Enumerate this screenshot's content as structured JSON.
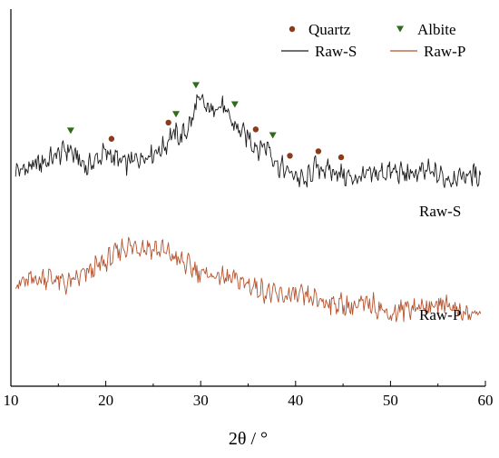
{
  "chart_data": {
    "type": "line",
    "xlabel": "2θ / °",
    "ylabel": "",
    "xlim": [
      10,
      60
    ],
    "x_ticks": [
      "10",
      "20",
      "30",
      "40",
      "50",
      "60"
    ],
    "y_ticks": false,
    "grid": false,
    "legend_position": "top-right",
    "legend": [
      {
        "label": "Quartz",
        "marker": "circle",
        "color": "#8B3A1A"
      },
      {
        "label": "Albite",
        "marker": "triangle-down",
        "color": "#2E6B1A"
      },
      {
        "label": "Raw-S",
        "marker": "line",
        "color": "#1a1a1a"
      },
      {
        "label": "Raw-P",
        "marker": "line",
        "color": "#B5532E"
      }
    ],
    "series": [
      {
        "name": "Raw-S",
        "color": "#1a1a1a",
        "x": [
          10.5,
          12,
          14,
          16,
          18,
          20,
          22,
          24,
          26,
          27,
          28,
          29,
          29.7,
          31,
          32,
          33,
          34,
          35,
          36,
          37,
          38,
          39,
          40,
          41,
          42,
          44,
          46,
          48,
          50,
          52,
          54,
          56,
          58,
          59.5
        ],
        "y": [
          0.57,
          0.58,
          0.6,
          0.63,
          0.58,
          0.62,
          0.59,
          0.61,
          0.63,
          0.67,
          0.66,
          0.7,
          0.76,
          0.73,
          0.75,
          0.71,
          0.68,
          0.66,
          0.63,
          0.64,
          0.59,
          0.57,
          0.56,
          0.54,
          0.58,
          0.57,
          0.55,
          0.56,
          0.57,
          0.56,
          0.57,
          0.55,
          0.56,
          0.56
        ]
      },
      {
        "name": "Raw-P",
        "color": "#B5532E",
        "x": [
          10.5,
          12,
          14,
          16,
          18,
          20,
          22,
          24,
          26,
          28,
          30,
          32,
          34,
          36,
          38,
          40,
          42,
          44,
          46,
          48,
          50,
          52,
          54,
          56,
          58,
          59.5
        ],
        "y": [
          0.27,
          0.28,
          0.29,
          0.27,
          0.3,
          0.33,
          0.37,
          0.37,
          0.36,
          0.33,
          0.3,
          0.29,
          0.28,
          0.26,
          0.24,
          0.24,
          0.23,
          0.22,
          0.21,
          0.22,
          0.19,
          0.21,
          0.21,
          0.22,
          0.19,
          0.19
        ]
      }
    ],
    "quartz_markers_x": [
      20.6,
      26.6,
      35.8,
      39.4,
      42.4,
      44.8
    ],
    "albite_markers_x": [
      16.3,
      27.4,
      29.5,
      33.6,
      37.6
    ],
    "series_labels": [
      {
        "text": "Raw-S",
        "for": "Raw-S"
      },
      {
        "text": "Raw-P",
        "for": "Raw-P"
      }
    ]
  }
}
